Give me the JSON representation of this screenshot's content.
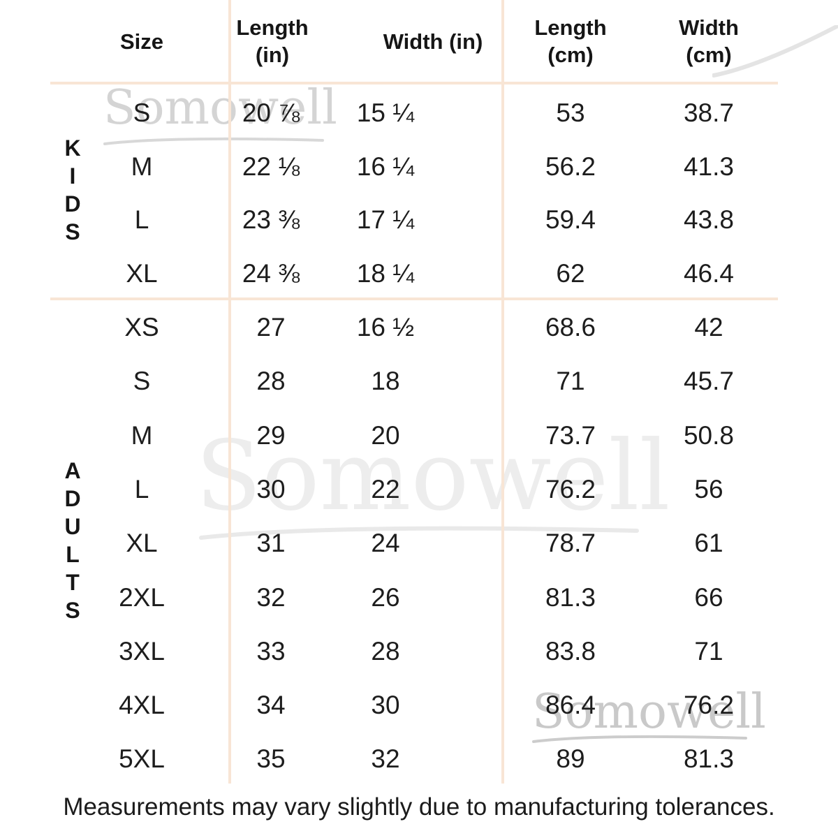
{
  "brand_watermark": {
    "text": "Somowell"
  },
  "header": {
    "columns": [
      "Size",
      "Length\n(in)",
      "Width (in)",
      "Length\n(cm)",
      "Width\n(cm)"
    ]
  },
  "chart_data": {
    "type": "table",
    "title": "Apparel size chart",
    "columns": [
      "Size",
      "Length (in)",
      "Width (in)",
      "Length (cm)",
      "Width (cm)"
    ],
    "sections": [
      {
        "group": "KIDS",
        "rows": [
          [
            "S",
            "20 ⅞",
            "15 ¼",
            "53",
            "38.7"
          ],
          [
            "M",
            "22 ⅛",
            "16 ¼",
            "56.2",
            "41.3"
          ],
          [
            "L",
            "23 ⅜",
            "17 ¼",
            "59.4",
            "43.8"
          ],
          [
            "XL",
            "24 ⅜",
            "18 ¼",
            "62",
            "46.4"
          ]
        ]
      },
      {
        "group": "ADULTS",
        "rows": [
          [
            "XS",
            "27",
            "16 ½",
            "68.6",
            "42"
          ],
          [
            "S",
            "28",
            "18",
            "71",
            "45.7"
          ],
          [
            "M",
            "29",
            "20",
            "73.7",
            "50.8"
          ],
          [
            "L",
            "30",
            "22",
            "76.2",
            "56"
          ],
          [
            "XL",
            "31",
            "24",
            "78.7",
            "61"
          ],
          [
            "2XL",
            "32",
            "26",
            "81.3",
            "66"
          ],
          [
            "3XL",
            "33",
            "28",
            "83.8",
            "71"
          ],
          [
            "4XL",
            "34",
            "30",
            "86.4",
            "76.2"
          ],
          [
            "5XL",
            "35",
            "32",
            "89",
            "81.3"
          ]
        ]
      }
    ]
  },
  "footer": {
    "note": "Measurements may vary slightly due to manufacturing tolerances."
  },
  "colors": {
    "divider": "#f8e5d5",
    "text": "#1d1d1d",
    "watermark_top": "#d4d4d4",
    "watermark_middle": "#ededed",
    "watermark_bottom": "#c9c9c9"
  }
}
